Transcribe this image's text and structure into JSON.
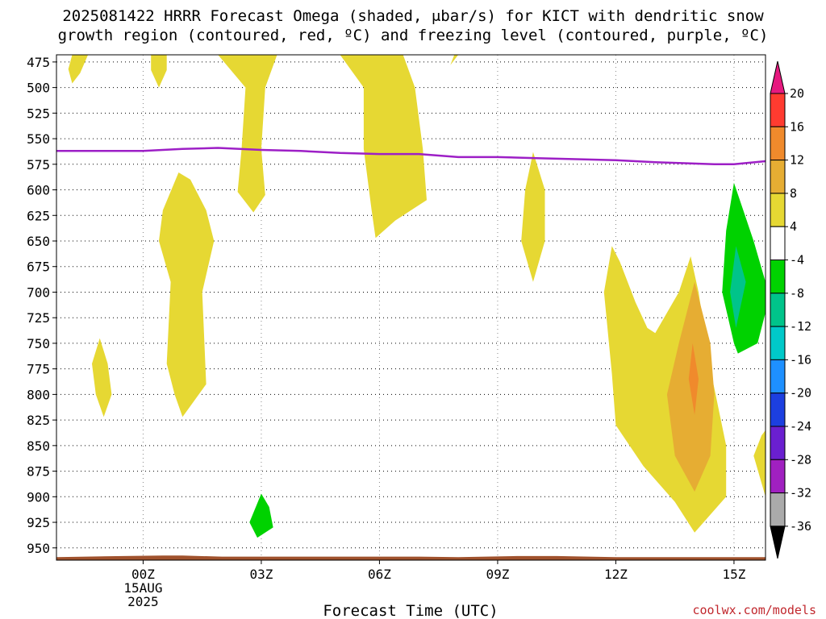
{
  "title_line1": "2025081422 HRRR Forecast Omega (shaded, μbar/s) for KICT with dendritic snow",
  "title_line2": "growth region (contoured, red, ºC) and freezing level (contoured, purple, ºC)",
  "credit": "coolwx.com/models",
  "chart_data": {
    "type": "time-height",
    "title": "2025081422 HRRR Forecast Omega (shaded, μbar/s) for KICT with dendritic snow growth region (contoured, red, ºC) and freezing level (contoured, purple, ºC)",
    "xlabel": "Forecast Time (UTC)",
    "ylabel": "",
    "x_range_hours": [
      -2.2,
      15.8
    ],
    "x_ticks": [
      {
        "hour": 0,
        "lines": [
          "00Z",
          "15AUG",
          "2025"
        ]
      },
      {
        "hour": 3,
        "lines": [
          "03Z"
        ]
      },
      {
        "hour": 6,
        "lines": [
          "06Z"
        ]
      },
      {
        "hour": 9,
        "lines": [
          "09Z"
        ]
      },
      {
        "hour": 12,
        "lines": [
          "12Z"
        ]
      },
      {
        "hour": 15,
        "lines": [
          "15Z"
        ]
      }
    ],
    "y_ticks": [
      475,
      500,
      525,
      550,
      575,
      600,
      625,
      650,
      675,
      700,
      725,
      750,
      775,
      800,
      825,
      850,
      875,
      900,
      925,
      950
    ],
    "y_range_hpa": [
      468,
      962
    ],
    "grid": true,
    "colorbar": {
      "labels": [
        "20",
        "16",
        "12",
        "8",
        "4",
        "-4",
        "-8",
        "-12",
        "-16",
        "-20",
        "-24",
        "-28",
        "-32",
        "-36"
      ],
      "bins": [
        {
          "label": ">20",
          "color": "#e6197f"
        },
        {
          "label": "16 to 20",
          "color": "#ff3b30"
        },
        {
          "label": "12 to 16",
          "color": "#f08a2c"
        },
        {
          "label": "8 to 12",
          "color": "#e6ad33"
        },
        {
          "label": "4 to 8",
          "color": "#e6d833"
        },
        {
          "label": "-4 to 4",
          "color": "#ffffff"
        },
        {
          "label": "-8 to -4",
          "color": "#00d200"
        },
        {
          "label": "-12 to -8",
          "color": "#00c48a"
        },
        {
          "label": "-16 to -12",
          "color": "#00c9c9"
        },
        {
          "label": "-20 to -16",
          "color": "#1e90ff"
        },
        {
          "label": "-24 to -20",
          "color": "#1c3fe0"
        },
        {
          "label": "-28 to -24",
          "color": "#6a1fd0"
        },
        {
          "label": "-32 to -28",
          "color": "#a020c0"
        },
        {
          "label": "-36 to -32",
          "color": "#aaaaaa"
        },
        {
          "label": "<-36",
          "color": "#000000"
        }
      ]
    },
    "freezing_level": {
      "color": "#9d1fc6",
      "points": [
        [
          -2.2,
          562
        ],
        [
          0,
          562
        ],
        [
          1.0,
          560
        ],
        [
          1.9,
          559
        ],
        [
          3.0,
          561
        ],
        [
          4.0,
          562
        ],
        [
          5.0,
          564
        ],
        [
          6.0,
          565
        ],
        [
          7.0,
          565
        ],
        [
          8.0,
          568
        ],
        [
          9.0,
          568
        ],
        [
          10.0,
          569
        ],
        [
          11.0,
          570
        ],
        [
          12.0,
          571
        ],
        [
          13.0,
          573
        ],
        [
          14.5,
          575
        ],
        [
          15.0,
          575
        ],
        [
          15.8,
          572
        ]
      ]
    },
    "omega_regions": [
      {
        "level": "4 to 8",
        "color": "#e6d833",
        "points": [
          [
            -1.8,
            468
          ],
          [
            -1.9,
            482
          ],
          [
            -1.8,
            496
          ],
          [
            -1.6,
            486
          ],
          [
            -1.4,
            468
          ]
        ]
      },
      {
        "level": "4 to 8",
        "color": "#e6d833",
        "points": [
          [
            0.2,
            468
          ],
          [
            0.2,
            483
          ],
          [
            0.4,
            500
          ],
          [
            0.6,
            483
          ],
          [
            0.6,
            468
          ]
        ]
      },
      {
        "level": "4 to 8",
        "color": "#e6d833",
        "points": [
          [
            1.9,
            468
          ],
          [
            2.6,
            500
          ],
          [
            2.5,
            560
          ],
          [
            2.4,
            602
          ],
          [
            2.8,
            622
          ],
          [
            3.1,
            605
          ],
          [
            3.0,
            560
          ],
          [
            3.1,
            500
          ],
          [
            3.4,
            468
          ]
        ]
      },
      {
        "level": "4 to 8",
        "color": "#e6d833",
        "points": [
          [
            5.0,
            468
          ],
          [
            5.6,
            500
          ],
          [
            5.6,
            560
          ],
          [
            5.8,
            620
          ],
          [
            5.9,
            647
          ],
          [
            6.4,
            630
          ],
          [
            7.2,
            610
          ],
          [
            7.1,
            560
          ],
          [
            6.9,
            500
          ],
          [
            6.6,
            468
          ]
        ]
      },
      {
        "level": "4 to 8",
        "color": "#e6d833",
        "points": [
          [
            7.9,
            468
          ],
          [
            7.8,
            478
          ],
          [
            8.0,
            468
          ]
        ]
      },
      {
        "level": "4 to 8",
        "color": "#e6d833",
        "points": [
          [
            -1.1,
            745
          ],
          [
            -1.3,
            770
          ],
          [
            -1.2,
            800
          ],
          [
            -1.0,
            822
          ],
          [
            -0.8,
            800
          ],
          [
            -0.9,
            770
          ]
        ]
      },
      {
        "level": "4 to 8",
        "color": "#e6d833",
        "points": [
          [
            0.9,
            583
          ],
          [
            0.5,
            620
          ],
          [
            0.4,
            650
          ],
          [
            0.7,
            690
          ],
          [
            0.6,
            770
          ],
          [
            0.8,
            800
          ],
          [
            1.0,
            822
          ],
          [
            1.6,
            790
          ],
          [
            1.5,
            700
          ],
          [
            1.8,
            650
          ],
          [
            1.6,
            620
          ],
          [
            1.2,
            590
          ]
        ]
      },
      {
        "level": "4 to 8",
        "color": "#e6d833",
        "points": [
          [
            9.9,
            563
          ],
          [
            9.7,
            600
          ],
          [
            9.6,
            650
          ],
          [
            9.9,
            690
          ],
          [
            10.2,
            650
          ],
          [
            10.2,
            600
          ]
        ]
      },
      {
        "level": "4 to 8",
        "color": "#e6d833",
        "points": [
          [
            11.9,
            655
          ],
          [
            11.7,
            700
          ],
          [
            11.9,
            780
          ],
          [
            12.0,
            830
          ],
          [
            12.7,
            870
          ],
          [
            13.5,
            905
          ],
          [
            14.0,
            935
          ],
          [
            14.8,
            900
          ],
          [
            14.8,
            850
          ],
          [
            14.4,
            775
          ],
          [
            14.1,
            700
          ],
          [
            13.9,
            665
          ],
          [
            13.6,
            700
          ],
          [
            13.0,
            740
          ],
          [
            12.8,
            735
          ],
          [
            12.5,
            710
          ],
          [
            12.1,
            670
          ]
        ]
      },
      {
        "level": "8 to 12",
        "color": "#e6ad33",
        "points": [
          [
            14.0,
            690
          ],
          [
            13.6,
            750
          ],
          [
            13.3,
            800
          ],
          [
            13.5,
            860
          ],
          [
            14.0,
            895
          ],
          [
            14.4,
            860
          ],
          [
            14.5,
            800
          ],
          [
            14.4,
            750
          ]
        ]
      },
      {
        "level": "12 to 16",
        "color": "#f08a2c",
        "points": [
          [
            13.95,
            750
          ],
          [
            13.85,
            785
          ],
          [
            14.0,
            820
          ],
          [
            14.1,
            785
          ]
        ]
      },
      {
        "level": "4 to 8",
        "color": "#e6d833",
        "points": [
          [
            15.8,
            835
          ],
          [
            15.7,
            840
          ],
          [
            15.5,
            860
          ],
          [
            15.8,
            900
          ]
        ]
      },
      {
        "level": "-8 to -4",
        "color": "#00d200",
        "points": [
          [
            15.0,
            593
          ],
          [
            14.8,
            640
          ],
          [
            14.7,
            700
          ],
          [
            15.0,
            750
          ],
          [
            15.1,
            760
          ],
          [
            15.6,
            750
          ],
          [
            15.8,
            720
          ],
          [
            15.8,
            690
          ],
          [
            15.5,
            650
          ]
        ]
      },
      {
        "level": "-12 to -8",
        "color": "#00c48a",
        "points": [
          [
            15.05,
            655
          ],
          [
            14.9,
            700
          ],
          [
            15.05,
            735
          ],
          [
            15.3,
            690
          ]
        ]
      },
      {
        "level": "-8 to -4",
        "color": "#00d200",
        "points": [
          [
            3.0,
            897
          ],
          [
            2.7,
            925
          ],
          [
            2.9,
            940
          ],
          [
            3.3,
            930
          ],
          [
            3.2,
            910
          ]
        ]
      }
    ],
    "terrain": {
      "color": "#a0522d",
      "top_points": [
        [
          -2.2,
          959
        ],
        [
          -0.5,
          958
        ],
        [
          0.5,
          957.5
        ],
        [
          1.0,
          957.5
        ],
        [
          2.0,
          958.5
        ],
        [
          4.0,
          958.5
        ],
        [
          7.0,
          958.5
        ],
        [
          8.0,
          959
        ],
        [
          9.5,
          958
        ],
        [
          10.5,
          958
        ],
        [
          12.0,
          959
        ],
        [
          15.8,
          959
        ]
      ]
    }
  }
}
